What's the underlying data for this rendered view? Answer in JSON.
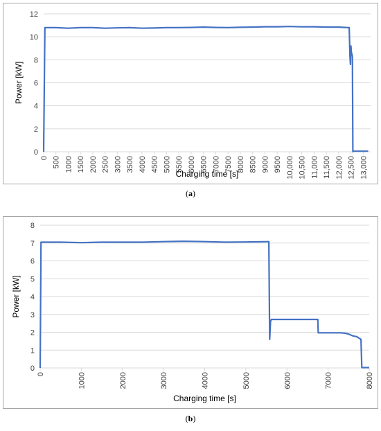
{
  "chart_data": [
    {
      "type": "line",
      "panel_label": "a",
      "xlabel": "Charging time [s]",
      "ylabel": "Power [kW]",
      "xlim": [
        0,
        13300
      ],
      "ylim": [
        0,
        12
      ],
      "yticks": [
        0,
        2,
        4,
        6,
        8,
        10,
        12
      ],
      "xtick_labels": [
        "0",
        "500",
        "1000",
        "1500",
        "2000",
        "2500",
        "3000",
        "3500",
        "4000",
        "4500",
        "5000",
        "5500",
        "6000",
        "6500",
        "7000",
        "7500",
        "8000",
        "8500",
        "9000",
        "9500",
        "10,000",
        "10,500",
        "11,000",
        "11,500",
        "12,000",
        "12,500",
        "13,000"
      ],
      "xtick_values": [
        0,
        500,
        1000,
        1500,
        2000,
        2500,
        3000,
        3500,
        4000,
        4500,
        5000,
        5500,
        6000,
        6500,
        7000,
        7500,
        8000,
        8500,
        9000,
        9500,
        10000,
        10500,
        11000,
        11500,
        12000,
        12500,
        13000
      ],
      "grid": "horizontal",
      "legend": "none",
      "color": "#4472c4",
      "series": [
        {
          "x": [
            0,
            50,
            500,
            1000,
            1500,
            2000,
            2500,
            3000,
            3500,
            4000,
            4500,
            5000,
            5500,
            6000,
            6500,
            7000,
            7500,
            8000,
            8500,
            9000,
            9500,
            10000,
            10500,
            11000,
            11500,
            12000,
            12400,
            12430,
            12460,
            12480,
            12500,
            12520,
            12540,
            12560,
            12580,
            12600,
            12620,
            13000,
            13200
          ],
          "y": [
            0,
            10.8,
            10.8,
            10.75,
            10.8,
            10.8,
            10.75,
            10.78,
            10.8,
            10.75,
            10.77,
            10.8,
            10.8,
            10.82,
            10.85,
            10.82,
            10.8,
            10.83,
            10.85,
            10.88,
            10.88,
            10.9,
            10.87,
            10.88,
            10.85,
            10.85,
            10.8,
            10.8,
            8.3,
            7.6,
            9.2,
            8.6,
            8.5,
            8.3,
            0,
            0.05,
            0.05,
            0.05,
            0.05
          ]
        }
      ]
    },
    {
      "type": "line",
      "panel_label": "b",
      "xlabel": "Charging time [s]",
      "ylabel": "Power [kW]",
      "xlim": [
        0,
        8000
      ],
      "ylim": [
        0,
        8
      ],
      "yticks": [
        0,
        1,
        2,
        3,
        4,
        5,
        6,
        7,
        8
      ],
      "xtick_labels": [
        "0",
        "1000",
        "2000",
        "3000",
        "4000",
        "5000",
        "6000",
        "7000",
        "8000"
      ],
      "xtick_values": [
        0,
        1000,
        2000,
        3000,
        4000,
        5000,
        6000,
        7000,
        8000
      ],
      "grid": "horizontal",
      "legend": "none",
      "color": "#4472c4",
      "series": [
        {
          "x": [
            0,
            20,
            500,
            1000,
            1500,
            2000,
            2500,
            3000,
            3500,
            4000,
            4500,
            5000,
            5400,
            5560,
            5580,
            5600,
            5620,
            5650,
            6000,
            6500,
            6750,
            6760,
            7000,
            7300,
            7400,
            7500,
            7600,
            7700,
            7800,
            7820,
            7850,
            8000
          ],
          "y": [
            0,
            7.05,
            7.05,
            7.02,
            7.05,
            7.05,
            7.05,
            7.08,
            7.1,
            7.08,
            7.05,
            7.06,
            7.07,
            7.08,
            1.6,
            2.6,
            2.72,
            2.72,
            2.72,
            2.72,
            2.72,
            1.97,
            1.97,
            1.97,
            1.95,
            1.9,
            1.8,
            1.75,
            1.6,
            0.02,
            0.02,
            0.02
          ]
        }
      ]
    }
  ],
  "captions": {
    "a": "a",
    "b": "b"
  }
}
